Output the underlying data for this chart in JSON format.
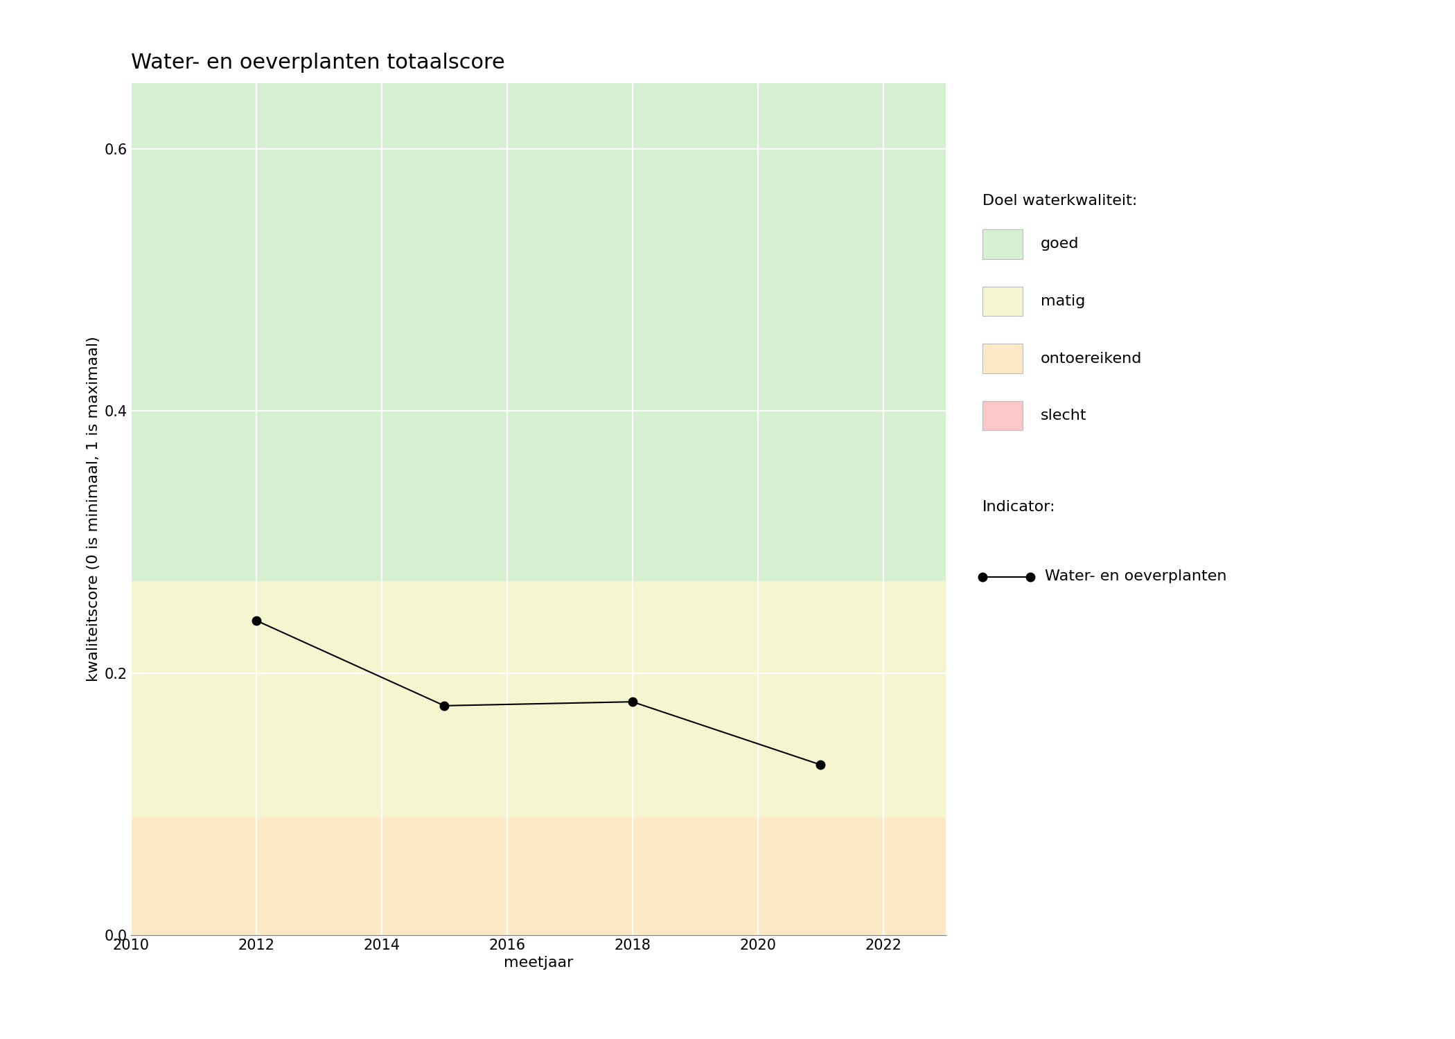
{
  "title": "Water- en oeverplanten totaalscore",
  "xlabel": "meetjaar",
  "ylabel": "kwaliteitscore (0 is minimaal, 1 is maximaal)",
  "xlim": [
    2010,
    2023
  ],
  "ylim": [
    0,
    0.65
  ],
  "xticks": [
    2010,
    2012,
    2014,
    2016,
    2018,
    2020,
    2022
  ],
  "yticks": [
    0.0,
    0.2,
    0.4,
    0.6
  ],
  "data_x": [
    2012,
    2015,
    2018,
    2021
  ],
  "data_y": [
    0.24,
    0.175,
    0.178,
    0.13
  ],
  "zones": [
    {
      "label": "goed",
      "ymin": 0.27,
      "ymax": 0.8,
      "color": "#d5f0d0"
    },
    {
      "label": "matig",
      "ymin": 0.09,
      "ymax": 0.27,
      "color": "#f5f5d0"
    },
    {
      "label": "ontoereikend",
      "ymin": 0.0,
      "ymax": 0.09,
      "color": "#fde8c8"
    },
    {
      "label": "slecht",
      "ymin": -0.1,
      "ymax": 0.0,
      "color": "#fac8c8"
    }
  ],
  "legend_title_doel": "Doel waterkwaliteit:",
  "legend_title_indicator": "Indicator:",
  "legend_indicator_label": "Water- en oeverplanten",
  "line_color": "#000000",
  "marker_color": "#000000",
  "marker_size": 9,
  "line_width": 1.5,
  "grid_color": "#ffffff",
  "bg_color": "#ffffff",
  "title_fontsize": 22,
  "label_fontsize": 16,
  "tick_fontsize": 15,
  "legend_fontsize": 16
}
